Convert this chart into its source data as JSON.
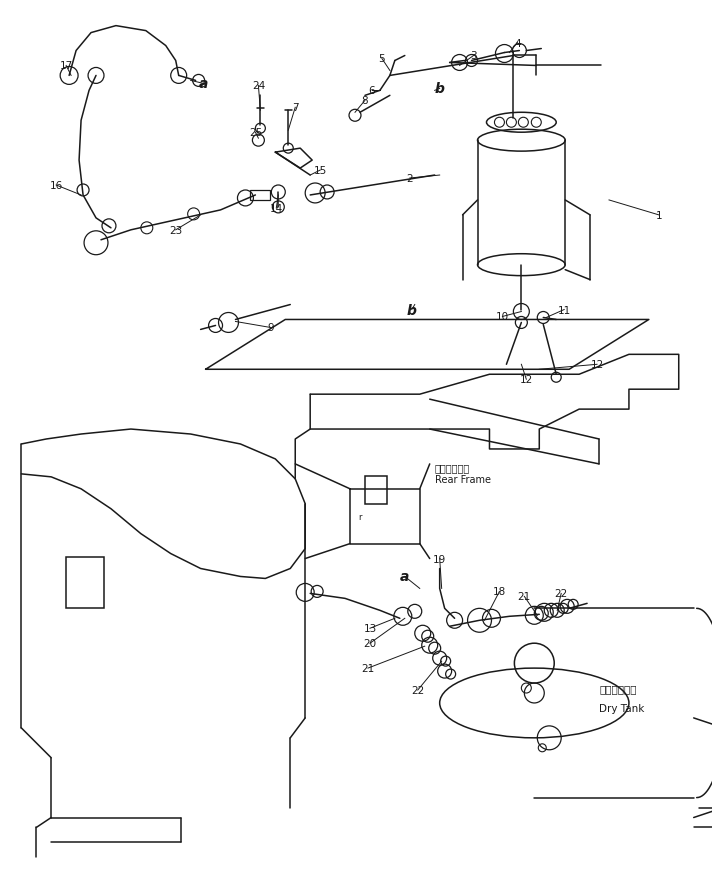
{
  "bg_color": "#ffffff",
  "line_color": "#000000",
  "figsize": [
    7.13,
    8.79
  ],
  "dpi": 100,
  "labels": {
    "rear_frame_jp": "リヤフレーム",
    "rear_frame_en": "Rear Frame",
    "dry_tank_jp": "ドライタンク",
    "dry_tank_en": "Dry Tank"
  }
}
